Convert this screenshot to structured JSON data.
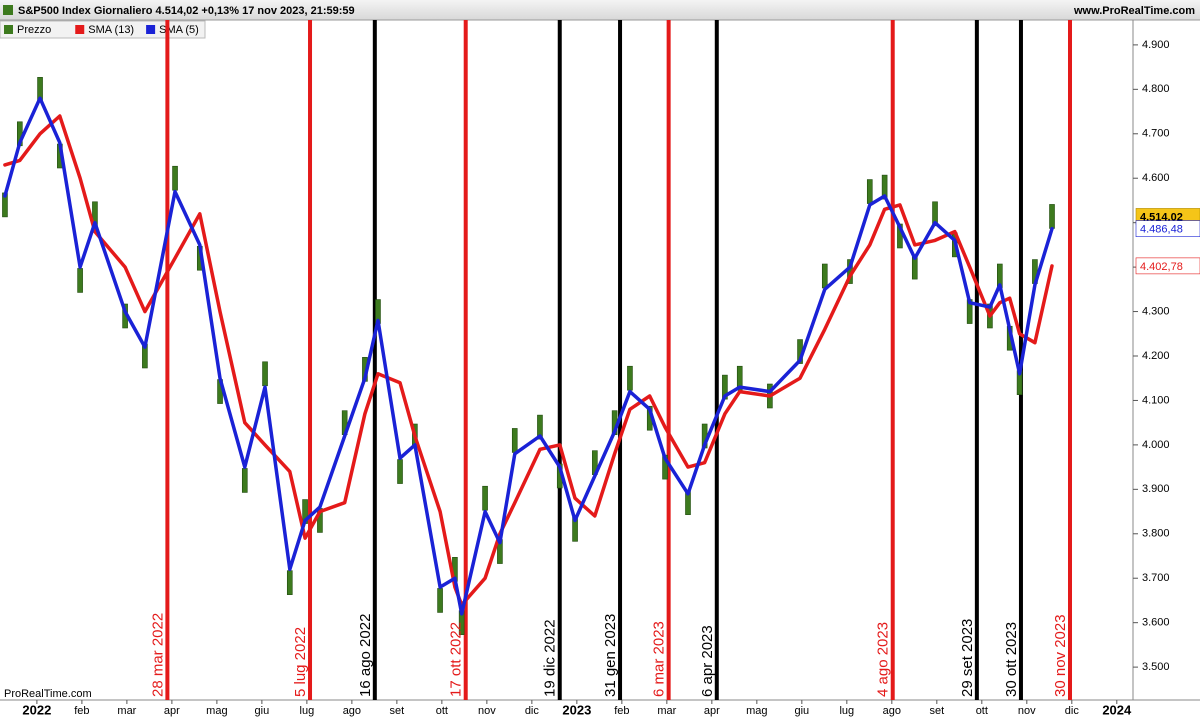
{
  "header": {
    "title": "S&P500 Index Giornaliero 4.514,02 +0,13% 17 nov 2023, 21:59:59",
    "site": "www.ProRealTime.com"
  },
  "footer": {
    "brand": "ProRealTime.com"
  },
  "chart_data": {
    "type": "line",
    "x": [
      -0.71,
      -0.38,
      0.07,
      0.51,
      0.96,
      1.29,
      1.96,
      2.4,
      3.07,
      3.62,
      4.07,
      4.62,
      5.07,
      5.62,
      5.96,
      6.29,
      6.84,
      7.29,
      7.58,
      8.07,
      8.4,
      8.96,
      9.29,
      9.44,
      9.96,
      10.29,
      10.62,
      11.18,
      11.62,
      11.96,
      12.4,
      12.84,
      13.18,
      13.62,
      13.96,
      14.47,
      14.84,
      15.29,
      15.62,
      16.29,
      16.96,
      17.51,
      18.07,
      18.51,
      18.84,
      19.18,
      19.51,
      19.96,
      20.4,
      20.73,
      21.18,
      21.4,
      21.62,
      21.84,
      22.18,
      22.56
    ],
    "series": [
      {
        "name": "Prezzo",
        "color": "#3d7a1e",
        "style": "bars",
        "last_label": "4.514,02",
        "values": [
          4540,
          4700,
          4800,
          4650,
          4370,
          4520,
          4290,
          4200,
          4600,
          4420,
          4120,
          3920,
          4160,
          3690,
          3850,
          3830,
          4050,
          4170,
          4300,
          3940,
          4020,
          3650,
          3720,
          3600,
          3880,
          3760,
          4010,
          4040,
          3930,
          3810,
          3960,
          4050,
          4150,
          4060,
          3950,
          3870,
          4020,
          4130,
          4150,
          4110,
          4210,
          4380,
          4390,
          4570,
          4580,
          4470,
          4400,
          4520,
          4450,
          4300,
          4290,
          4380,
          4240,
          4140,
          4390,
          4514.02
        ]
      },
      {
        "name": "SMA (13)",
        "color": "#e41a1a",
        "style": "line",
        "last_label": "4.402,78",
        "values": [
          4630,
          4640,
          4700,
          4740,
          4600,
          4480,
          4400,
          4300,
          4420,
          4520,
          4300,
          4050,
          4000,
          3940,
          3790,
          3850,
          3870,
          4070,
          4160,
          4140,
          4020,
          3850,
          3680,
          3640,
          3700,
          3800,
          3870,
          3990,
          4000,
          3880,
          3840,
          3980,
          4080,
          4110,
          4040,
          3950,
          3960,
          4070,
          4120,
          4110,
          4150,
          4260,
          4380,
          4450,
          4530,
          4540,
          4450,
          4460,
          4480,
          4400,
          4290,
          4320,
          4330,
          4250,
          4230,
          4402.78
        ]
      },
      {
        "name": "SMA (5)",
        "color": "#1a22d6",
        "style": "line",
        "last_label": "4.486,48",
        "values": [
          4560,
          4680,
          4780,
          4680,
          4400,
          4500,
          4300,
          4220,
          4570,
          4450,
          4150,
          3950,
          4130,
          3720,
          3830,
          3860,
          4020,
          4150,
          4280,
          3970,
          4000,
          3680,
          3700,
          3620,
          3850,
          3780,
          3980,
          4020,
          3950,
          3830,
          3930,
          4030,
          4120,
          4080,
          3970,
          3890,
          4000,
          4110,
          4130,
          4120,
          4190,
          4350,
          4400,
          4540,
          4560,
          4490,
          4420,
          4500,
          4460,
          4320,
          4310,
          4360,
          4260,
          4160,
          4360,
          4486.48
        ]
      }
    ],
    "xlim": [
      -0.82,
      24.36
    ],
    "xticks": [
      {
        "value": 0,
        "label": "2022"
      },
      {
        "value": 1,
        "label": "feb"
      },
      {
        "value": 2,
        "label": "mar"
      },
      {
        "value": 3,
        "label": "apr"
      },
      {
        "value": 4,
        "label": "mag"
      },
      {
        "value": 5,
        "label": "giu"
      },
      {
        "value": 6,
        "label": "lug"
      },
      {
        "value": 7,
        "label": "ago"
      },
      {
        "value": 8,
        "label": "set"
      },
      {
        "value": 9,
        "label": "ott"
      },
      {
        "value": 10,
        "label": "nov"
      },
      {
        "value": 11,
        "label": "dic"
      },
      {
        "value": 12,
        "label": "2023"
      },
      {
        "value": 13,
        "label": "feb"
      },
      {
        "value": 14,
        "label": "mar"
      },
      {
        "value": 15,
        "label": "apr"
      },
      {
        "value": 16,
        "label": "mag"
      },
      {
        "value": 17,
        "label": "giu"
      },
      {
        "value": 18,
        "label": "lug"
      },
      {
        "value": 19,
        "label": "ago"
      },
      {
        "value": 20,
        "label": "set"
      },
      {
        "value": 21,
        "label": "ott"
      },
      {
        "value": 22,
        "label": "nov"
      },
      {
        "value": 23,
        "label": "dic"
      },
      {
        "value": 24,
        "label": "2024"
      }
    ],
    "ylim": [
      3426,
      4956
    ],
    "yticks": [
      {
        "value": 3500,
        "label": "3.500"
      },
      {
        "value": 3600,
        "label": "3.600"
      },
      {
        "value": 3700,
        "label": "3.700"
      },
      {
        "value": 3800,
        "label": "3.800"
      },
      {
        "value": 3900,
        "label": "3.900"
      },
      {
        "value": 4000,
        "label": "4.000"
      },
      {
        "value": 4100,
        "label": "4.100"
      },
      {
        "value": 4200,
        "label": "4.200"
      },
      {
        "value": 4300,
        "label": "4.300"
      },
      {
        "value": 4400,
        "label": "4.400"
      },
      {
        "value": 4500,
        "label": "4.500"
      },
      {
        "value": 4600,
        "label": "4.600"
      },
      {
        "value": 4700,
        "label": "4.700"
      },
      {
        "value": 4800,
        "label": "4.800"
      },
      {
        "value": 4900,
        "label": "4.900"
      }
    ],
    "vlines": [
      {
        "value": 2.9,
        "label": "28 mar 2022",
        "color": "#e41a1a"
      },
      {
        "value": 6.07,
        "label": "5 lug 2022",
        "color": "#e41a1a"
      },
      {
        "value": 7.51,
        "label": "16 ago 2022",
        "color": "#000000"
      },
      {
        "value": 9.53,
        "label": "17 ott 2022",
        "color": "#e41a1a"
      },
      {
        "value": 11.62,
        "label": "19 dic 2022",
        "color": "#000000"
      },
      {
        "value": 12.96,
        "label": "31 gen 2023",
        "color": "#000000"
      },
      {
        "value": 14.04,
        "label": "6 mar 2023",
        "color": "#e41a1a"
      },
      {
        "value": 15.11,
        "label": "6 apr 2023",
        "color": "#000000"
      },
      {
        "value": 19.02,
        "label": "4 ago 2023",
        "color": "#e41a1a"
      },
      {
        "value": 20.89,
        "label": "29 set 2023",
        "color": "#000000"
      },
      {
        "value": 21.87,
        "label": "30 ott 2023",
        "color": "#000000"
      },
      {
        "value": 22.96,
        "label": "30 nov 2023",
        "color": "#e41a1a"
      }
    ],
    "grid": false
  }
}
